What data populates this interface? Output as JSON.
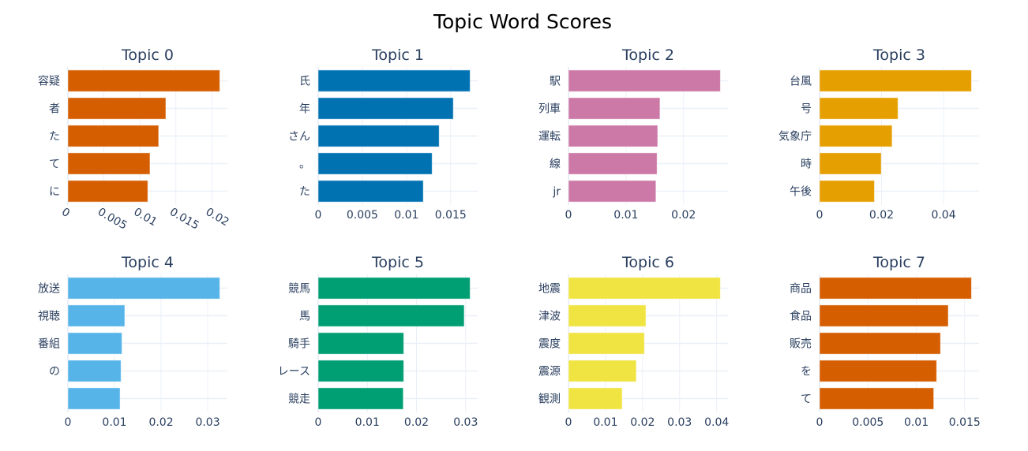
{
  "chart_data": {
    "type": "bar",
    "orientation": "horizontal",
    "title": "Topic Word Scores",
    "grid": true,
    "subplots": [
      {
        "title": "Topic 0",
        "color": "#D55E00",
        "words": [
          "容疑",
          "者",
          "た",
          "て",
          "に"
        ],
        "values": [
          0.0211,
          0.0136,
          0.0126,
          0.0114,
          0.0111
        ],
        "ticks": [
          0,
          0.005,
          0.01,
          0.015,
          0.02
        ],
        "tick_labels": [
          "0",
          "0.005",
          "0.01",
          "0.015",
          "0.02"
        ],
        "tick_angle": 30
      },
      {
        "title": "Topic 1",
        "color": "#0072B2",
        "words": [
          "氏",
          "年",
          "さん",
          "。",
          "た"
        ],
        "values": [
          0.0172,
          0.0153,
          0.0137,
          0.0129,
          0.0119
        ],
        "ticks": [
          0,
          0.005,
          0.01,
          0.015
        ],
        "tick_labels": [
          "0",
          "0.005",
          "0.01",
          "0.015"
        ]
      },
      {
        "title": "Topic 2",
        "color": "#CC79A7",
        "words": [
          "駅",
          "列車",
          "運転",
          "線",
          "jr"
        ],
        "values": [
          0.0264,
          0.0159,
          0.0155,
          0.0154,
          0.0152
        ],
        "ticks": [
          0,
          0.01,
          0.02
        ],
        "tick_labels": [
          "0",
          "0.01",
          "0.02"
        ]
      },
      {
        "title": "Topic 3",
        "color": "#E69F00",
        "words": [
          "台風",
          "号",
          "気象庁",
          "時",
          "午後"
        ],
        "values": [
          0.049,
          0.0253,
          0.0234,
          0.0199,
          0.0177
        ],
        "ticks": [
          0,
          0.02,
          0.04
        ],
        "tick_labels": [
          "0",
          "0.02",
          "0.04"
        ]
      },
      {
        "title": "Topic 4",
        "color": "#56B4E9",
        "words": [
          "放送",
          "視聴",
          "番組",
          "の",
          ""
        ],
        "values": [
          0.0326,
          0.0122,
          0.0116,
          0.0114,
          0.0112
        ],
        "ticks": [
          0,
          0.01,
          0.02,
          0.03
        ],
        "tick_labels": [
          "0",
          "0.01",
          "0.02",
          "0.03"
        ]
      },
      {
        "title": "Topic 5",
        "color": "#009E73",
        "words": [
          "競馬",
          "馬",
          "騎手",
          "レース",
          "競走"
        ],
        "values": [
          0.0309,
          0.0297,
          0.0174,
          0.0174,
          0.0173
        ],
        "ticks": [
          0,
          0.01,
          0.02,
          0.03
        ],
        "tick_labels": [
          "0",
          "0.01",
          "0.02",
          "0.03"
        ]
      },
      {
        "title": "Topic 6",
        "color": "#F0E442",
        "words": [
          "地震",
          "津波",
          "震度",
          "震源",
          "観測"
        ],
        "values": [
          0.041,
          0.0209,
          0.0205,
          0.0183,
          0.0145
        ],
        "ticks": [
          0,
          0.01,
          0.02,
          0.03,
          0.04
        ],
        "tick_labels": [
          "0",
          "0.01",
          "0.02",
          "0.03",
          "0.04"
        ]
      },
      {
        "title": "Topic 7",
        "color": "#D55E00",
        "words": [
          "商品",
          "食品",
          "販売",
          "を",
          "て"
        ],
        "values": [
          0.0157,
          0.0133,
          0.0125,
          0.0121,
          0.0118
        ],
        "ticks": [
          0,
          0.005,
          0.01,
          0.015
        ],
        "tick_labels": [
          "0",
          "0.005",
          "0.01",
          "0.015"
        ]
      }
    ]
  }
}
